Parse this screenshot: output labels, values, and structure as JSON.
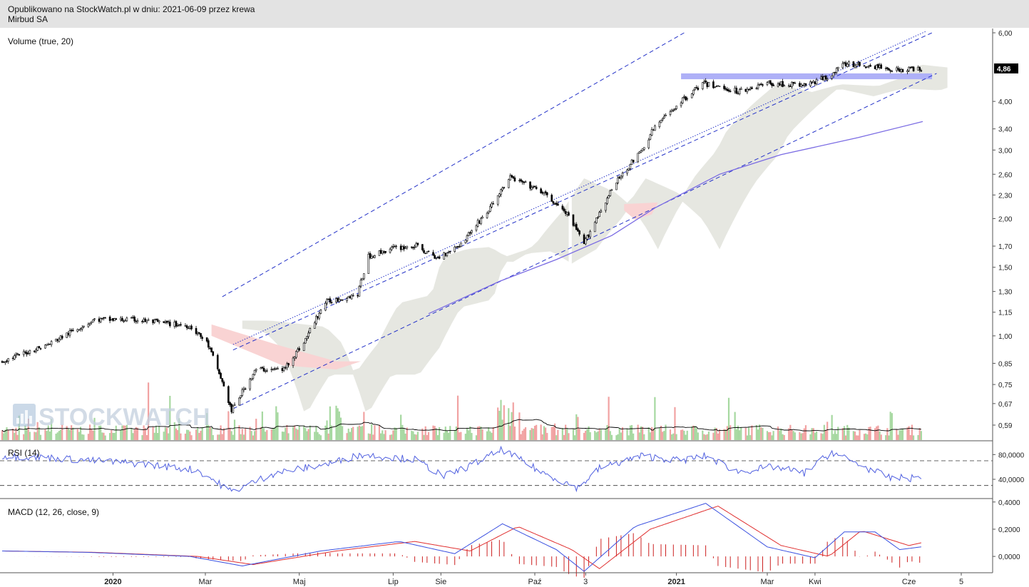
{
  "header": {
    "published": "Opublikowano na StockWatch.pl w dniu: 2021-06-09 przez krewa",
    "instrument": "Mirbud SA"
  },
  "watermark": "STOCKWATCH",
  "chart_data": [
    {
      "type": "candlestick",
      "panel": "price",
      "legend": "Volume (true, 20)",
      "scale": "log",
      "ylim": [
        0.54,
        6.0
      ],
      "yticks": [
        6.0,
        4.0,
        3.4,
        3.0,
        2.6,
        2.3,
        2.0,
        1.7,
        1.5,
        1.3,
        1.15,
        1.0,
        0.85,
        0.75,
        0.67,
        0.59
      ],
      "ytick_labels": [
        "6,00",
        "4,00",
        "3,40",
        "3,00",
        "2,60",
        "2,30",
        "2,00",
        "1,70",
        "1,50",
        "1,30",
        "1,15",
        "1,00",
        "0,85",
        "0,75",
        "0,67",
        "0,59"
      ],
      "last_price": 4.86,
      "last_price_label": "4,86",
      "path_points": [
        [
          "2019-10-21",
          0.86
        ],
        [
          "2019-11-20",
          0.95
        ],
        [
          "2019-12-20",
          1.1
        ],
        [
          "2020-01-15",
          1.1
        ],
        [
          "2020-02-20",
          1.06
        ],
        [
          "2020-03-02",
          0.96
        ],
        [
          "2020-03-18",
          0.64
        ],
        [
          "2020-04-03",
          0.82
        ],
        [
          "2020-04-21",
          0.82
        ],
        [
          "2020-05-04",
          0.96
        ],
        [
          "2020-05-18",
          1.22
        ],
        [
          "2020-06-08",
          1.28
        ],
        [
          "2020-06-15",
          1.6
        ],
        [
          "2020-07-01",
          1.68
        ],
        [
          "2020-07-16",
          1.7
        ],
        [
          "2020-07-29",
          1.58
        ],
        [
          "2020-08-14",
          1.72
        ],
        [
          "2020-09-01",
          2.1
        ],
        [
          "2020-09-15",
          2.55
        ],
        [
          "2020-10-05",
          2.35
        ],
        [
          "2020-10-22",
          2.05
        ],
        [
          "2020-11-02",
          1.72
        ],
        [
          "2020-11-10",
          2.0
        ],
        [
          "2020-11-25",
          2.55
        ],
        [
          "2020-12-10",
          3.0
        ],
        [
          "2020-12-17",
          3.4
        ],
        [
          "2021-01-04",
          4.0
        ],
        [
          "2021-01-18",
          4.45
        ],
        [
          "2021-02-10",
          4.25
        ],
        [
          "2021-03-01",
          4.45
        ],
        [
          "2021-03-25",
          4.4
        ],
        [
          "2021-04-08",
          4.6
        ],
        [
          "2021-04-21",
          5.0
        ],
        [
          "2021-05-12",
          4.9
        ],
        [
          "2021-05-26",
          4.82
        ],
        [
          "2021-06-09",
          4.86
        ]
      ],
      "sma200_points": [
        [
          "2020-07-24",
          1.14
        ],
        [
          "2020-09-08",
          1.38
        ],
        [
          "2020-10-15",
          1.57
        ],
        [
          "2020-11-20",
          1.81
        ],
        [
          "2020-12-18",
          2.13
        ],
        [
          "2021-01-29",
          2.6
        ],
        [
          "2021-03-10",
          2.92
        ],
        [
          "2021-04-29",
          3.23
        ],
        [
          "2021-06-10",
          3.55
        ]
      ],
      "resistance_zone": {
        "from": "2021-01-04",
        "to": "2021-06-16",
        "y_low": 4.56,
        "y_high": 4.72
      },
      "trend_channel": [
        {
          "style": "dashed",
          "from": [
            "2020-03-12",
            1.26
          ],
          "to": [
            "2021-01-06",
            6.0
          ]
        },
        {
          "style": "dashed",
          "from": [
            "2020-03-19",
            0.92
          ],
          "to": [
            "2021-06-16",
            6.0
          ]
        },
        {
          "style": "dashed",
          "from": [
            "2020-03-19",
            0.65
          ],
          "to": [
            "2021-06-19",
            4.72
          ]
        },
        {
          "style": "dotted",
          "from": [
            "2020-03-19",
            0.95
          ],
          "to": [
            "2021-06-12",
            6.05
          ]
        }
      ],
      "volume": {
        "ma_period": 20
      }
    },
    {
      "type": "line",
      "panel": "rsi",
      "legend": "RSI (14)",
      "ylim": [
        10,
        100
      ],
      "yticks": [
        80,
        40
      ],
      "ytick_labels": [
        "80,0000",
        "40,0000"
      ],
      "reference_lines": [
        70,
        30
      ],
      "points": [
        [
          "2019-10-21",
          78
        ],
        [
          "2019-11-20",
          75
        ],
        [
          "2019-12-20",
          70
        ],
        [
          "2020-01-20",
          65
        ],
        [
          "2020-02-25",
          55
        ],
        [
          "2020-03-18",
          20
        ],
        [
          "2020-04-15",
          50
        ],
        [
          "2020-05-20",
          65
        ],
        [
          "2020-06-10",
          80
        ],
        [
          "2020-07-15",
          72
        ],
        [
          "2020-08-03",
          45
        ],
        [
          "2020-08-20",
          62
        ],
        [
          "2020-09-10",
          88
        ],
        [
          "2020-10-05",
          52
        ],
        [
          "2020-10-29",
          26
        ],
        [
          "2020-11-12",
          58
        ],
        [
          "2020-12-10",
          78
        ],
        [
          "2021-01-04",
          70
        ],
        [
          "2021-01-20",
          78
        ],
        [
          "2021-02-10",
          52
        ],
        [
          "2021-03-05",
          60
        ],
        [
          "2021-03-25",
          50
        ],
        [
          "2021-04-12",
          84
        ],
        [
          "2021-05-05",
          58
        ],
        [
          "2021-05-20",
          42
        ],
        [
          "2021-06-09",
          42
        ]
      ]
    },
    {
      "type": "line",
      "panel": "macd",
      "legend": "MACD (12, 26, close, 9)",
      "ylim": [
        -0.12,
        0.42
      ],
      "yticks": [
        0.4,
        0.2,
        0.0
      ],
      "ytick_labels": [
        "0,4000",
        "0,2000",
        "0,0000"
      ],
      "macd_points": [
        [
          "2019-10-21",
          0.04
        ],
        [
          "2019-12-15",
          0.03
        ],
        [
          "2020-02-20",
          0.0
        ],
        [
          "2020-03-25",
          -0.07
        ],
        [
          "2020-05-15",
          0.04
        ],
        [
          "2020-07-05",
          0.11
        ],
        [
          "2020-08-10",
          0.02
        ],
        [
          "2020-09-10",
          0.24
        ],
        [
          "2020-10-15",
          0.05
        ],
        [
          "2020-11-02",
          -0.11
        ],
        [
          "2020-12-05",
          0.22
        ],
        [
          "2021-01-20",
          0.39
        ],
        [
          "2021-03-01",
          0.07
        ],
        [
          "2021-04-01",
          -0.01
        ],
        [
          "2021-04-20",
          0.18
        ],
        [
          "2021-05-10",
          0.18
        ],
        [
          "2021-05-26",
          0.05
        ],
        [
          "2021-06-09",
          0.07
        ]
      ],
      "signal_points": [
        [
          "2019-10-21",
          0.04
        ],
        [
          "2019-12-20",
          0.03
        ],
        [
          "2020-02-25",
          0.0
        ],
        [
          "2020-04-01",
          -0.06
        ],
        [
          "2020-05-25",
          0.04
        ],
        [
          "2020-07-15",
          0.11
        ],
        [
          "2020-08-20",
          0.04
        ],
        [
          "2020-09-20",
          0.22
        ],
        [
          "2020-10-25",
          0.05
        ],
        [
          "2020-11-12",
          -0.09
        ],
        [
          "2020-12-15",
          0.2
        ],
        [
          "2021-01-28",
          0.37
        ],
        [
          "2021-03-10",
          0.08
        ],
        [
          "2021-04-10",
          0.0
        ],
        [
          "2021-05-01",
          0.19
        ],
        [
          "2021-06-01",
          0.08
        ],
        [
          "2021-06-09",
          0.1
        ]
      ]
    }
  ],
  "x_axis": {
    "ticks": [
      {
        "label": "2020",
        "date": "2020-01-01",
        "bold": true
      },
      {
        "label": "Mar",
        "date": "2020-03-01"
      },
      {
        "label": "Maj",
        "date": "2020-05-01"
      },
      {
        "label": "Lip",
        "date": "2020-07-01"
      },
      {
        "label": "Sie",
        "date": "2020-08-01"
      },
      {
        "label": "Paź",
        "date": "2020-10-01"
      },
      {
        "label": "3",
        "date": "2020-11-03"
      },
      {
        "label": "2021",
        "date": "2021-01-01",
        "bold": true
      },
      {
        "label": "Mar",
        "date": "2021-03-01"
      },
      {
        "label": "Kwi",
        "date": "2021-04-01"
      },
      {
        "label": "Cze",
        "date": "2021-06-01"
      },
      {
        "label": "5",
        "date": "2021-07-05"
      }
    ]
  },
  "colors": {
    "header_bg": "#e3e3e3",
    "candle": "#000000",
    "cloud_bull": "#e6e7e1",
    "cloud_bear": "#f9d3d3",
    "resistance_zone": "#aeb0f7",
    "trend_line": "#2432c8",
    "sma": "#7a6be3",
    "vol_up": "#a6d8a0",
    "vol_down": "#f1a2a2",
    "vol_ma": "#000000",
    "rsi": "#5060e0",
    "macd": "#3a50e0",
    "signal": "#e03030",
    "histogram": "#cc2020",
    "grid": "#888888",
    "price_tag": "#000000"
  }
}
